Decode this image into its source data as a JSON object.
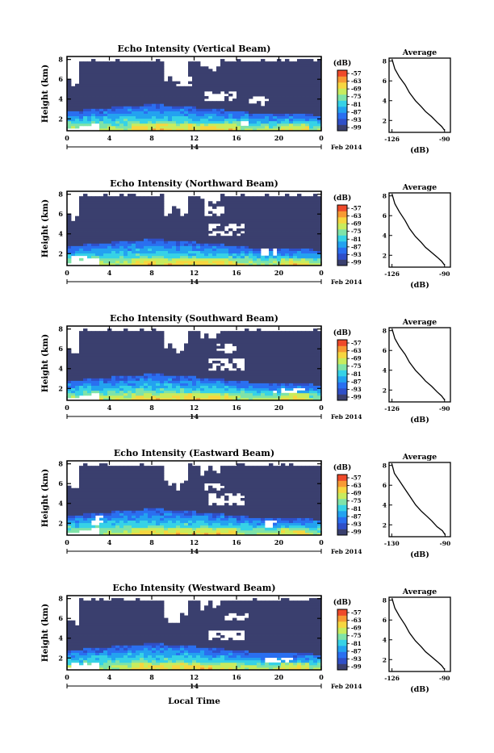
{
  "figure": {
    "xlabel": "Local Time",
    "date_label": "Feb 2014"
  },
  "colorbar": {
    "unit_label": "(dB)",
    "ticks": [
      "-57",
      "-63",
      "-69",
      "-75",
      "-81",
      "-87",
      "-93",
      "-99"
    ],
    "colors": [
      "#3a3f6e",
      "#2f4fc8",
      "#2a6ff0",
      "#23a2f0",
      "#36d2e6",
      "#7fe3a8",
      "#c8ec5e",
      "#f6d640",
      "#f79a34",
      "#ef4a2a"
    ]
  },
  "chart_data": [
    {
      "type": "heatmap",
      "title": "Echo Intensity (Vertical Beam)",
      "ylabel": "Height (km)",
      "x_ticks": [
        "0",
        "4",
        "8",
        "12",
        "16",
        "20",
        "0"
      ],
      "day_label": "14",
      "y_ticks": [
        "2",
        "4",
        "6",
        "8"
      ],
      "xlim": [
        0,
        24
      ],
      "ylim": [
        0.8,
        8.3
      ],
      "pattern": {
        "dry_peak": [
          2.0,
          8.4,
          4.0
        ],
        "wet_top": [
          [
            0,
            2.8
          ],
          [
            8,
            3.5
          ],
          [
            12,
            3.2
          ],
          [
            18,
            2.6
          ],
          [
            24,
            2.4
          ]
        ],
        "gaps": [
          [
            14.5,
            4.3,
            1.5,
            0.5
          ],
          [
            11,
            5.8,
            0.8,
            0.6
          ],
          [
            18,
            3.9,
            1.0,
            0.5
          ],
          [
            17,
            1.5,
            0.5,
            0.3
          ]
        ]
      },
      "average": {
        "title": "Average",
        "xlabel": "(dB)",
        "x_ticks": [
          "-126",
          "-90"
        ],
        "y_ticks": [
          "2",
          "4",
          "6",
          "8"
        ],
        "xlim": [
          -128,
          -86
        ],
        "ylim": [
          0.8,
          8.3
        ],
        "profile": [
          [
            -126,
            8.2
          ],
          [
            -124,
            7.2
          ],
          [
            -121,
            6.4
          ],
          [
            -117,
            5.6
          ],
          [
            -114,
            4.8
          ],
          [
            -110,
            4.0
          ],
          [
            -106,
            3.4
          ],
          [
            -103,
            2.9
          ],
          [
            -99,
            2.4
          ],
          [
            -95,
            1.8
          ],
          [
            -92,
            1.4
          ],
          [
            -90,
            1.0
          ]
        ]
      }
    },
    {
      "type": "heatmap",
      "title": "Echo Intensity (Northward Beam)",
      "ylabel": "Height (km)",
      "x_ticks": [
        "0",
        "4",
        "8",
        "12",
        "16",
        "20",
        "0"
      ],
      "day_label": "14",
      "y_ticks": [
        "2",
        "4",
        "6",
        "8"
      ],
      "xlim": [
        0,
        24
      ],
      "ylim": [
        0.8,
        8.3
      ],
      "pattern": {
        "dry_peak": [
          2.0,
          8.4,
          4.0
        ],
        "wet_top": [
          [
            0,
            2.8
          ],
          [
            8,
            3.5
          ],
          [
            12,
            3.2
          ],
          [
            18,
            2.6
          ],
          [
            24,
            2.4
          ]
        ],
        "gaps": [
          [
            15,
            4.5,
            1.6,
            0.6
          ],
          [
            14,
            6.4,
            1.0,
            0.5
          ],
          [
            1,
            1.3,
            1.2,
            0.5
          ],
          [
            19,
            2.2,
            0.8,
            0.4
          ]
        ]
      },
      "average": {
        "title": "Average",
        "xlabel": "(dB)",
        "x_ticks": [
          "-126",
          "-90"
        ],
        "y_ticks": [
          "2",
          "4",
          "6",
          "8"
        ],
        "xlim": [
          -128,
          -86
        ],
        "ylim": [
          0.8,
          8.3
        ],
        "profile": [
          [
            -126,
            8.2
          ],
          [
            -124,
            7.2
          ],
          [
            -121,
            6.4
          ],
          [
            -117,
            5.5
          ],
          [
            -114,
            4.7
          ],
          [
            -110,
            3.9
          ],
          [
            -106,
            3.3
          ],
          [
            -103,
            2.8
          ],
          [
            -99,
            2.3
          ],
          [
            -95,
            1.8
          ],
          [
            -92,
            1.4
          ],
          [
            -90,
            1.0
          ]
        ]
      }
    },
    {
      "type": "heatmap",
      "title": "Echo Intensity (Southward Beam)",
      "ylabel": "Height (km)",
      "x_ticks": [
        "0",
        "4",
        "8",
        "12",
        "16",
        "20",
        "0"
      ],
      "day_label": "14",
      "y_ticks": [
        "2",
        "4",
        "6",
        "8"
      ],
      "xlim": [
        0,
        24
      ],
      "ylim": [
        0.8,
        8.3
      ],
      "pattern": {
        "dry_peak": [
          2.0,
          8.4,
          4.0
        ],
        "wet_top": [
          [
            0,
            2.8
          ],
          [
            8,
            3.5
          ],
          [
            12,
            3.2
          ],
          [
            18,
            2.6
          ],
          [
            24,
            2.4
          ]
        ],
        "gaps": [
          [
            15,
            4.5,
            1.6,
            0.6
          ],
          [
            15,
            6.0,
            1.0,
            0.5
          ],
          [
            21,
            1.7,
            1.6,
            0.25
          ]
        ]
      },
      "average": {
        "title": "Average",
        "xlabel": "(dB)",
        "x_ticks": [
          "-126",
          "-90"
        ],
        "y_ticks": [
          "2",
          "4",
          "6",
          "8"
        ],
        "xlim": [
          -128,
          -86
        ],
        "ylim": [
          0.8,
          8.3
        ],
        "profile": [
          [
            -126,
            8.2
          ],
          [
            -124,
            7.2
          ],
          [
            -121,
            6.4
          ],
          [
            -117,
            5.6
          ],
          [
            -114,
            4.8
          ],
          [
            -110,
            4.0
          ],
          [
            -106,
            3.4
          ],
          [
            -103,
            2.9
          ],
          [
            -99,
            2.4
          ],
          [
            -95,
            1.8
          ],
          [
            -92,
            1.4
          ],
          [
            -90,
            1.0
          ]
        ]
      }
    },
    {
      "type": "heatmap",
      "title": "Echo Intensity (Eastward Beam)",
      "ylabel": "Height (km)",
      "x_ticks": [
        "0",
        "4",
        "8",
        "12",
        "16",
        "20",
        "0"
      ],
      "day_label": "14",
      "y_ticks": [
        "2",
        "4",
        "6",
        "8"
      ],
      "xlim": [
        0,
        24
      ],
      "ylim": [
        0.8,
        8.3
      ],
      "pattern": {
        "dry_peak": [
          2.0,
          8.4,
          4.0
        ],
        "wet_top": [
          [
            0,
            2.8
          ],
          [
            8,
            3.5
          ],
          [
            12,
            3.2
          ],
          [
            18,
            2.6
          ],
          [
            24,
            2.4
          ]
        ],
        "gaps": [
          [
            15,
            4.5,
            1.6,
            0.6
          ],
          [
            14,
            5.6,
            1.0,
            0.4
          ],
          [
            3,
            2.2,
            0.8,
            0.5
          ],
          [
            19,
            2.0,
            0.8,
            0.4
          ]
        ]
      },
      "average": {
        "title": "Average",
        "xlabel": "(dB)",
        "x_ticks": [
          "-130",
          "-90"
        ],
        "y_ticks": [
          "2",
          "4",
          "6",
          "8"
        ],
        "xlim": [
          -132,
          -86
        ],
        "ylim": [
          0.8,
          8.3
        ],
        "profile": [
          [
            -130,
            8.2
          ],
          [
            -128,
            7.2
          ],
          [
            -124,
            6.4
          ],
          [
            -120,
            5.6
          ],
          [
            -116,
            4.8
          ],
          [
            -112,
            4.0
          ],
          [
            -108,
            3.4
          ],
          [
            -104,
            2.9
          ],
          [
            -100,
            2.4
          ],
          [
            -96,
            1.8
          ],
          [
            -92,
            1.4
          ],
          [
            -90,
            1.0
          ]
        ]
      }
    },
    {
      "type": "heatmap",
      "title": "Echo Intensity (Westward Beam)",
      "ylabel": "Height (km)",
      "x_ticks": [
        "0",
        "4",
        "8",
        "12",
        "16",
        "20",
        "0"
      ],
      "day_label": "14",
      "y_ticks": [
        "2",
        "4",
        "6",
        "8"
      ],
      "xlim": [
        0,
        24
      ],
      "ylim": [
        0.8,
        8.3
      ],
      "pattern": {
        "dry_peak": [
          2.0,
          8.4,
          4.0
        ],
        "wet_top": [
          [
            0,
            2.8
          ],
          [
            8,
            3.5
          ],
          [
            12,
            3.2
          ],
          [
            18,
            2.6
          ],
          [
            24,
            2.4
          ]
        ],
        "gaps": [
          [
            15,
            4.3,
            1.6,
            0.6
          ],
          [
            16,
            6.2,
            1.0,
            0.4
          ],
          [
            20,
            1.8,
            1.4,
            0.3
          ],
          [
            1,
            1.2,
            0.8,
            0.4
          ]
        ]
      },
      "average": {
        "title": "Average",
        "xlabel": "(dB)",
        "x_ticks": [
          "-126",
          "-90"
        ],
        "y_ticks": [
          "2",
          "4",
          "6",
          "8"
        ],
        "xlim": [
          -128,
          -86
        ],
        "ylim": [
          0.8,
          8.3
        ],
        "profile": [
          [
            -126,
            8.2
          ],
          [
            -124,
            7.2
          ],
          [
            -121,
            6.4
          ],
          [
            -117,
            5.5
          ],
          [
            -114,
            4.7
          ],
          [
            -110,
            3.9
          ],
          [
            -106,
            3.3
          ],
          [
            -103,
            2.8
          ],
          [
            -99,
            2.3
          ],
          [
            -95,
            1.8
          ],
          [
            -92,
            1.4
          ],
          [
            -90,
            1.0
          ]
        ]
      }
    }
  ]
}
